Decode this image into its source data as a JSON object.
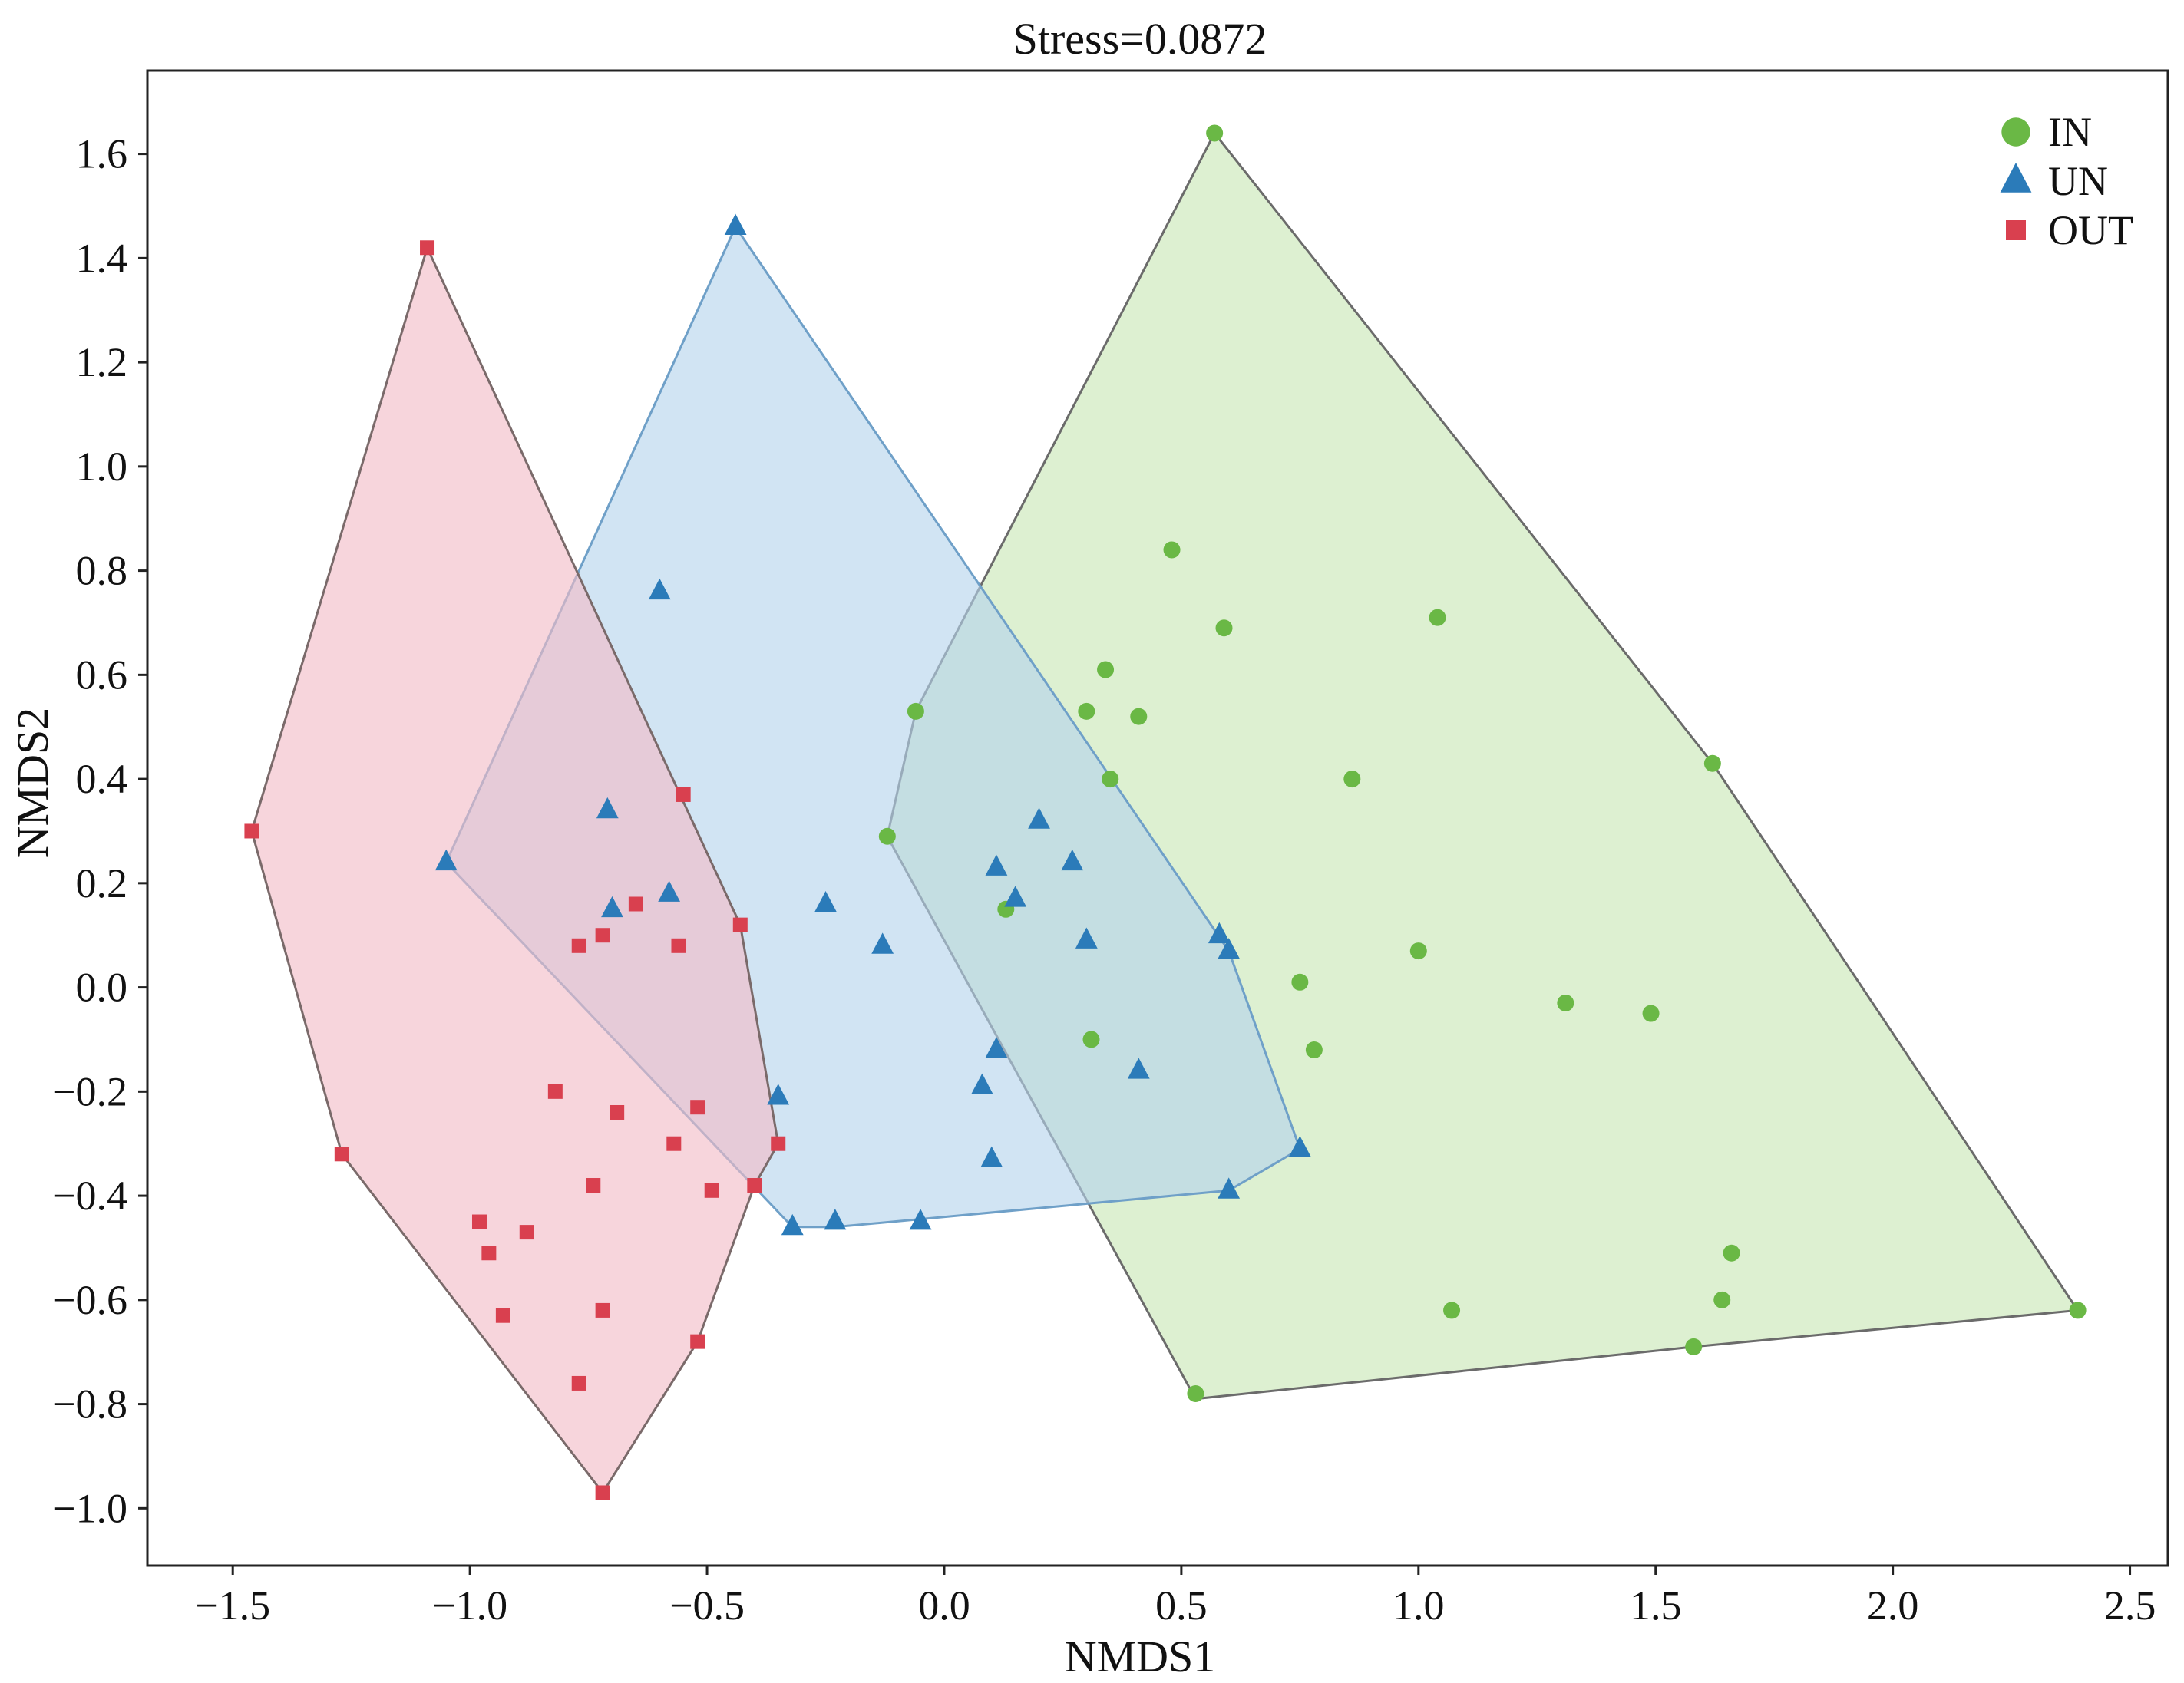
{
  "chart_data": {
    "type": "scatter",
    "title": "Stress=0.0872",
    "xlabel": "NMDS1",
    "ylabel": "NMDS2",
    "xlim": [
      -1.68,
      2.58
    ],
    "ylim": [
      -1.11,
      1.76
    ],
    "xticks": [
      -1.5,
      -1.0,
      -0.5,
      0.0,
      0.5,
      1.0,
      1.5,
      2.0,
      2.5
    ],
    "xtick_labels": [
      "−1.5",
      "−1.0",
      "−0.5",
      "0.0",
      "0.5",
      "1.0",
      "1.5",
      "2.0",
      "2.5"
    ],
    "yticks": [
      1.6,
      1.4,
      1.2,
      1.0,
      0.8,
      0.6,
      0.4,
      0.2,
      0.0,
      -0.2,
      -0.4,
      -0.6,
      -0.8,
      -1.0
    ],
    "ytick_labels": [
      "1.6",
      "1.4",
      "1.2",
      "1.0",
      "0.8",
      "0.6",
      "0.4",
      "0.2",
      "0.0",
      "−0.2",
      "−0.4",
      "−0.6",
      "−0.8",
      "−1.0"
    ],
    "grid": false,
    "legend_position": "top-right",
    "series": [
      {
        "name": "IN",
        "marker": "circle",
        "color": "#6ab845",
        "fill": "#c8e6b4",
        "stroke": "#6b6b6b",
        "points": [
          [
            0.57,
            1.64
          ],
          [
            0.48,
            0.84
          ],
          [
            0.59,
            0.69
          ],
          [
            1.04,
            0.71
          ],
          [
            0.34,
            0.61
          ],
          [
            0.3,
            0.53
          ],
          [
            0.41,
            0.52
          ],
          [
            -0.06,
            0.53
          ],
          [
            0.35,
            0.4
          ],
          [
            0.86,
            0.4
          ],
          [
            1.62,
            0.43
          ],
          [
            -0.12,
            0.29
          ],
          [
            0.13,
            0.15
          ],
          [
            1.0,
            0.07
          ],
          [
            0.75,
            0.01
          ],
          [
            1.31,
            -0.03
          ],
          [
            1.49,
            -0.05
          ],
          [
            0.31,
            -0.1
          ],
          [
            0.78,
            -0.12
          ],
          [
            1.66,
            -0.51
          ],
          [
            1.64,
            -0.6
          ],
          [
            1.07,
            -0.62
          ],
          [
            2.39,
            -0.62
          ],
          [
            1.58,
            -0.69
          ],
          [
            0.53,
            -0.78
          ]
        ],
        "hull": [
          [
            0.57,
            1.64
          ],
          [
            1.62,
            0.43
          ],
          [
            2.39,
            -0.62
          ],
          [
            1.58,
            -0.69
          ],
          [
            0.53,
            -0.79
          ],
          [
            -0.12,
            0.29
          ],
          [
            -0.06,
            0.53
          ]
        ]
      },
      {
        "name": "UN",
        "marker": "triangle",
        "color": "#2b7bb9",
        "fill": "#b4d4ec",
        "stroke": "#6fa0c8",
        "points": [
          [
            -0.44,
            1.46
          ],
          [
            -0.6,
            0.76
          ],
          [
            -0.71,
            0.34
          ],
          [
            -1.05,
            0.24
          ],
          [
            -0.58,
            0.18
          ],
          [
            -0.7,
            0.15
          ],
          [
            -0.25,
            0.16
          ],
          [
            -0.13,
            0.08
          ],
          [
            0.11,
            0.23
          ],
          [
            0.2,
            0.32
          ],
          [
            0.27,
            0.24
          ],
          [
            0.15,
            0.17
          ],
          [
            0.3,
            0.09
          ],
          [
            0.58,
            0.1
          ],
          [
            0.6,
            0.07
          ],
          [
            0.11,
            -0.12
          ],
          [
            0.08,
            -0.19
          ],
          [
            0.41,
            -0.16
          ],
          [
            -0.35,
            -0.21
          ],
          [
            0.1,
            -0.33
          ],
          [
            0.75,
            -0.31
          ],
          [
            0.6,
            -0.39
          ],
          [
            -0.32,
            -0.46
          ],
          [
            -0.23,
            -0.45
          ],
          [
            -0.05,
            -0.45
          ]
        ],
        "hull": [
          [
            -0.44,
            1.46
          ],
          [
            0.6,
            0.07
          ],
          [
            0.75,
            -0.31
          ],
          [
            0.6,
            -0.39
          ],
          [
            -0.23,
            -0.46
          ],
          [
            -0.32,
            -0.46
          ],
          [
            -1.05,
            0.24
          ]
        ]
      },
      {
        "name": "OUT",
        "marker": "square",
        "color": "#d9404f",
        "fill": "#f2bcc6",
        "stroke": "#7a6a6a",
        "points": [
          [
            -1.09,
            1.42
          ],
          [
            -1.46,
            0.3
          ],
          [
            -0.55,
            0.37
          ],
          [
            -0.43,
            0.12
          ],
          [
            -0.65,
            0.16
          ],
          [
            -0.72,
            0.1
          ],
          [
            -0.77,
            0.08
          ],
          [
            -0.56,
            0.08
          ],
          [
            -0.82,
            -0.2
          ],
          [
            -0.69,
            -0.24
          ],
          [
            -0.52,
            -0.23
          ],
          [
            -0.57,
            -0.3
          ],
          [
            -0.35,
            -0.3
          ],
          [
            -0.74,
            -0.38
          ],
          [
            -0.49,
            -0.39
          ],
          [
            -0.4,
            -0.38
          ],
          [
            -0.98,
            -0.45
          ],
          [
            -0.88,
            -0.47
          ],
          [
            -0.96,
            -0.51
          ],
          [
            -0.72,
            -0.62
          ],
          [
            -0.93,
            -0.63
          ],
          [
            -0.52,
            -0.68
          ],
          [
            -0.77,
            -0.76
          ],
          [
            -0.72,
            -0.97
          ],
          [
            -1.27,
            -0.32
          ]
        ],
        "hull": [
          [
            -1.09,
            1.42
          ],
          [
            -0.43,
            0.12
          ],
          [
            -0.35,
            -0.3
          ],
          [
            -0.4,
            -0.38
          ],
          [
            -0.52,
            -0.68
          ],
          [
            -0.72,
            -0.97
          ],
          [
            -1.27,
            -0.32
          ],
          [
            -1.46,
            0.3
          ]
        ]
      }
    ]
  }
}
